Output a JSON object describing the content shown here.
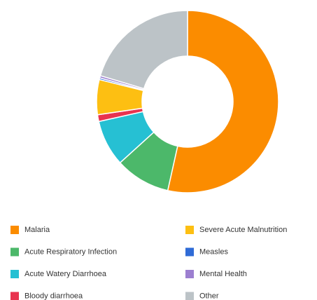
{
  "chart_data": {
    "type": "donut",
    "categories": [
      "Malaria",
      "Acute Respiratory Infection",
      "Acute Watery Diarrhoea",
      "Bloody diarrhoea",
      "Severe Acute Malnutrition",
      "Measles",
      "Mental Health",
      "Other"
    ],
    "values": [
      53.5,
      9.8,
      8.2,
      1.2,
      6.2,
      0.3,
      0.4,
      20.4
    ],
    "colors": [
      "#fb8c00",
      "#4cb86a",
      "#26c0d3",
      "#e8334f",
      "#fdbf12",
      "#2f6bd6",
      "#9c7fd0",
      "#bcc3c7"
    ],
    "legend": "bottom"
  }
}
